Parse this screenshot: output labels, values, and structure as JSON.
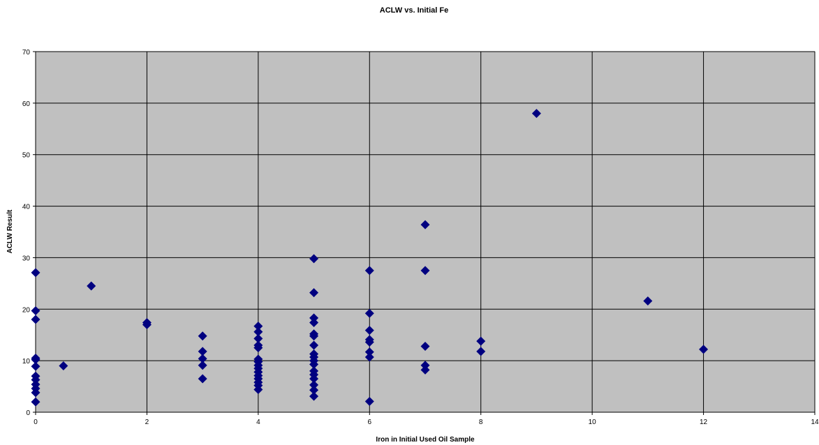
{
  "chart_data": {
    "type": "scatter",
    "title": "ACLW vs. Initial Fe",
    "xlabel": "Iron in Initial Used Oil Sample",
    "ylabel": "ACLW Result",
    "xlim": [
      0,
      14
    ],
    "ylim": [
      0,
      70
    ],
    "x_ticks": [
      "0",
      "2",
      "4",
      "6",
      "8",
      "10",
      "12",
      "14"
    ],
    "y_ticks": [
      "0",
      "10",
      "20",
      "30",
      "40",
      "50",
      "60",
      "70"
    ],
    "grid": true,
    "legend": "none",
    "plot_background": "#c0c0c0",
    "marker_color": "#000080",
    "marker": "diamond",
    "points": [
      {
        "x": 0,
        "y": 27.1
      },
      {
        "x": 0,
        "y": 19.7
      },
      {
        "x": 0,
        "y": 18.0
      },
      {
        "x": 0,
        "y": 10.5
      },
      {
        "x": 0,
        "y": 10.2
      },
      {
        "x": 0,
        "y": 8.9
      },
      {
        "x": 0,
        "y": 7.0
      },
      {
        "x": 0,
        "y": 6.3
      },
      {
        "x": 0,
        "y": 5.4
      },
      {
        "x": 0,
        "y": 4.6
      },
      {
        "x": 0,
        "y": 3.8
      },
      {
        "x": 0,
        "y": 2.0
      },
      {
        "x": 0.5,
        "y": 9.0
      },
      {
        "x": 1,
        "y": 24.5
      },
      {
        "x": 2,
        "y": 17.4
      },
      {
        "x": 2,
        "y": 17.0
      },
      {
        "x": 3,
        "y": 14.8
      },
      {
        "x": 3,
        "y": 11.8
      },
      {
        "x": 3,
        "y": 10.4
      },
      {
        "x": 3,
        "y": 9.1
      },
      {
        "x": 3,
        "y": 6.5
      },
      {
        "x": 4,
        "y": 16.7
      },
      {
        "x": 4,
        "y": 15.6
      },
      {
        "x": 4,
        "y": 14.3
      },
      {
        "x": 4,
        "y": 13.0
      },
      {
        "x": 4,
        "y": 12.5
      },
      {
        "x": 4,
        "y": 10.3
      },
      {
        "x": 4,
        "y": 9.8
      },
      {
        "x": 4,
        "y": 9.1
      },
      {
        "x": 4,
        "y": 8.5
      },
      {
        "x": 4,
        "y": 7.8
      },
      {
        "x": 4,
        "y": 7.1
      },
      {
        "x": 4,
        "y": 6.5
      },
      {
        "x": 4,
        "y": 5.8
      },
      {
        "x": 4,
        "y": 5.2
      },
      {
        "x": 4,
        "y": 4.4
      },
      {
        "x": 5,
        "y": 29.8
      },
      {
        "x": 5,
        "y": 23.2
      },
      {
        "x": 5,
        "y": 18.3
      },
      {
        "x": 5,
        "y": 17.4
      },
      {
        "x": 5,
        "y": 15.2
      },
      {
        "x": 5,
        "y": 14.8
      },
      {
        "x": 5,
        "y": 13.0
      },
      {
        "x": 5,
        "y": 11.3
      },
      {
        "x": 5,
        "y": 10.7
      },
      {
        "x": 5,
        "y": 10.0
      },
      {
        "x": 5,
        "y": 9.3
      },
      {
        "x": 5,
        "y": 8.0
      },
      {
        "x": 5,
        "y": 7.3
      },
      {
        "x": 5,
        "y": 6.5
      },
      {
        "x": 5,
        "y": 5.3
      },
      {
        "x": 5,
        "y": 4.3
      },
      {
        "x": 5,
        "y": 3.1
      },
      {
        "x": 6,
        "y": 27.5
      },
      {
        "x": 6,
        "y": 19.2
      },
      {
        "x": 6,
        "y": 15.9
      },
      {
        "x": 6,
        "y": 14.1
      },
      {
        "x": 6,
        "y": 13.6
      },
      {
        "x": 6,
        "y": 11.7
      },
      {
        "x": 6,
        "y": 10.7
      },
      {
        "x": 6,
        "y": 2.1
      },
      {
        "x": 7,
        "y": 36.4
      },
      {
        "x": 7,
        "y": 27.5
      },
      {
        "x": 7,
        "y": 12.8
      },
      {
        "x": 7,
        "y": 9.1
      },
      {
        "x": 7,
        "y": 8.2
      },
      {
        "x": 8,
        "y": 13.8
      },
      {
        "x": 8,
        "y": 11.8
      },
      {
        "x": 9,
        "y": 58.0
      },
      {
        "x": 11,
        "y": 21.6
      },
      {
        "x": 12,
        "y": 12.2
      }
    ]
  }
}
